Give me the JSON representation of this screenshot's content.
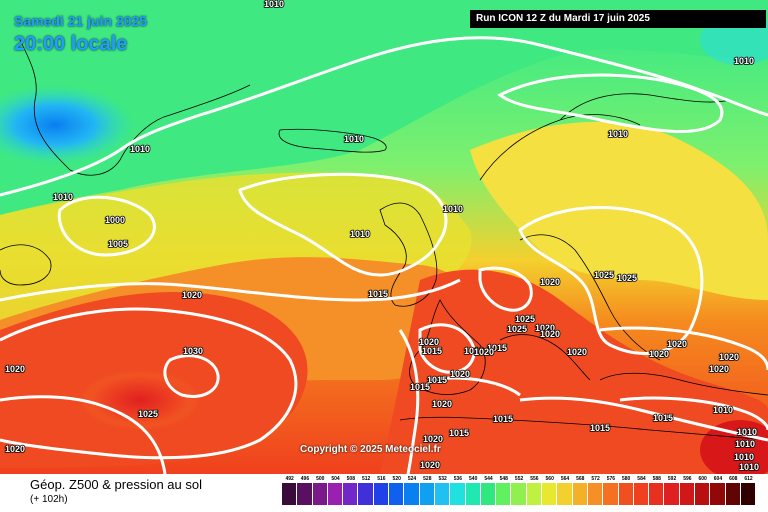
{
  "header": {
    "date": "Samedi 21 juin 2025",
    "time": "20:00 locale",
    "run": "Run ICON 12 Z du Mardi 17 juin 2025"
  },
  "footer": {
    "title": "Géop. Z500 & pression au sol",
    "lead": "(+ 102h)",
    "copyright": "Copyright © 2025 Meteociel.fr"
  },
  "isobars": [
    {
      "value": "1010"
    },
    {
      "value": "1010"
    },
    {
      "value": "1010"
    },
    {
      "value": "1010"
    },
    {
      "value": "1010"
    },
    {
      "value": "1010"
    },
    {
      "value": "1010"
    },
    {
      "value": "1000"
    },
    {
      "value": "1010"
    },
    {
      "value": "1005"
    },
    {
      "value": "1025"
    },
    {
      "value": "1025"
    },
    {
      "value": "1020"
    },
    {
      "value": "1020"
    },
    {
      "value": "1015"
    },
    {
      "value": "1025"
    },
    {
      "value": "1025"
    },
    {
      "value": "1020"
    },
    {
      "value": "1020"
    },
    {
      "value": "1020"
    },
    {
      "value": "1020"
    },
    {
      "value": "1015"
    },
    {
      "value": "1010"
    },
    {
      "value": "1015"
    },
    {
      "value": "1020"
    },
    {
      "value": "1020"
    },
    {
      "value": "1030"
    },
    {
      "value": "1020"
    },
    {
      "value": "1020"
    },
    {
      "value": "1020"
    },
    {
      "value": "1020"
    },
    {
      "value": "1020"
    },
    {
      "value": "1015"
    },
    {
      "value": "1015"
    },
    {
      "value": "1020"
    },
    {
      "value": "1010"
    },
    {
      "value": "1025"
    },
    {
      "value": "1015"
    },
    {
      "value": "1015"
    },
    {
      "value": "1015"
    },
    {
      "value": "1010"
    },
    {
      "value": "1015"
    },
    {
      "value": "1020"
    },
    {
      "value": "1010"
    },
    {
      "value": "1020"
    },
    {
      "value": "1010"
    },
    {
      "value": "1020"
    },
    {
      "value": "1010"
    }
  ],
  "legend": {
    "labels": [
      "492",
      "496",
      "500",
      "504",
      "508",
      "512",
      "516",
      "520",
      "524",
      "528",
      "532",
      "536",
      "540",
      "544",
      "548",
      "552",
      "556",
      "560",
      "564",
      "568",
      "572",
      "576",
      "580",
      "584",
      "588",
      "592",
      "596",
      "600",
      "604",
      "608",
      "612"
    ],
    "colors": [
      "#3a0a3a",
      "#5a1060",
      "#7a1a8a",
      "#9a20b0",
      "#7028c8",
      "#4030d8",
      "#2040e8",
      "#1060f0",
      "#0a80f0",
      "#10a0f0",
      "#20c0f0",
      "#20e0e0",
      "#20e8b0",
      "#30e880",
      "#60f060",
      "#90f050",
      "#c0f040",
      "#e8e830",
      "#f4d02e",
      "#f4b028",
      "#f59028",
      "#f57020",
      "#f05020",
      "#f04020",
      "#e83020",
      "#e02020",
      "#d01818",
      "#b81010",
      "#900808",
      "#600404",
      "#300000"
    ]
  }
}
